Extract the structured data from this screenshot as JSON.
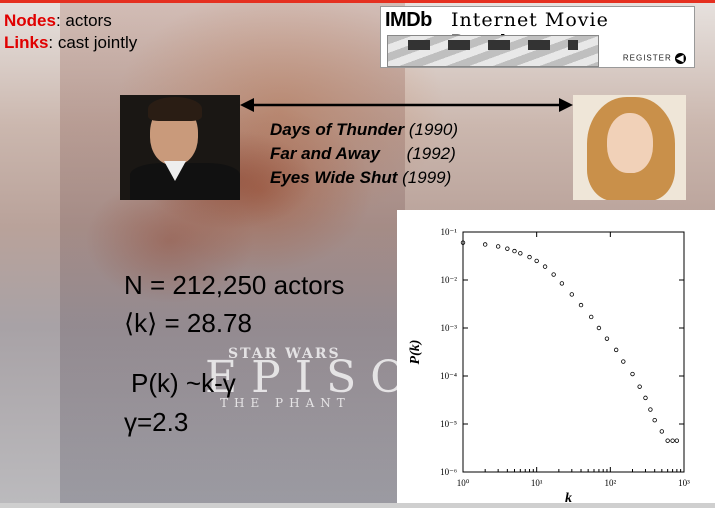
{
  "legend": {
    "nodes_key": "Nodes",
    "nodes_value": ": actors",
    "links_key": "Links",
    "links_value": ": cast jointly"
  },
  "banner": {
    "brand": "IMDb",
    "name": "Internet Movie Database",
    "register": "REGISTER"
  },
  "films": [
    {
      "title": "Days of Thunder",
      "year": "(1990)"
    },
    {
      "title": "Far and Away",
      "year": "(1992)"
    },
    {
      "title": "Eyes Wide Shut",
      "year": "(1999)"
    }
  ],
  "stats": {
    "n": "N = 212,250 actors",
    "k": "⟨k⟩ = 28.78",
    "pk": "P(k) ~k-γ",
    "gamma": "γ=2.3"
  },
  "poster": {
    "line1": "STAR WARS",
    "line2": "EPISO",
    "line3": "THE PHANT"
  },
  "chart_data": {
    "type": "scatter",
    "xlabel": "k",
    "ylabel": "P(k)",
    "xscale": "log",
    "yscale": "log",
    "xlim": [
      1,
      1000
    ],
    "ylim": [
      1e-06,
      0.1
    ],
    "xticks": [
      "10⁰",
      "10¹",
      "10²",
      "10³"
    ],
    "yticks": [
      "10⁻¹",
      "10⁻²",
      "10⁻³",
      "10⁻⁴",
      "10⁻⁵",
      "10⁻⁶"
    ],
    "grid": false,
    "series": [
      {
        "points": [
          [
            1,
            0.06
          ],
          [
            2,
            0.055
          ],
          [
            3,
            0.05
          ],
          [
            4,
            0.045
          ],
          [
            5,
            0.04
          ],
          [
            6,
            0.036
          ],
          [
            8,
            0.03
          ],
          [
            10,
            0.025
          ],
          [
            13,
            0.019
          ],
          [
            17,
            0.013
          ],
          [
            22,
            0.0085
          ],
          [
            30,
            0.005
          ],
          [
            40,
            0.003
          ],
          [
            55,
            0.0017
          ],
          [
            70,
            0.001
          ],
          [
            90,
            0.0006
          ],
          [
            120,
            0.00035
          ],
          [
            150,
            0.0002
          ],
          [
            200,
            0.00011
          ],
          [
            250,
            6e-05
          ],
          [
            300,
            3.5e-05
          ],
          [
            350,
            2e-05
          ],
          [
            400,
            1.2e-05
          ],
          [
            500,
            7e-06
          ],
          [
            600,
            4.5e-06
          ],
          [
            700,
            4.5e-06
          ],
          [
            800,
            4.5e-06
          ]
        ]
      }
    ]
  }
}
